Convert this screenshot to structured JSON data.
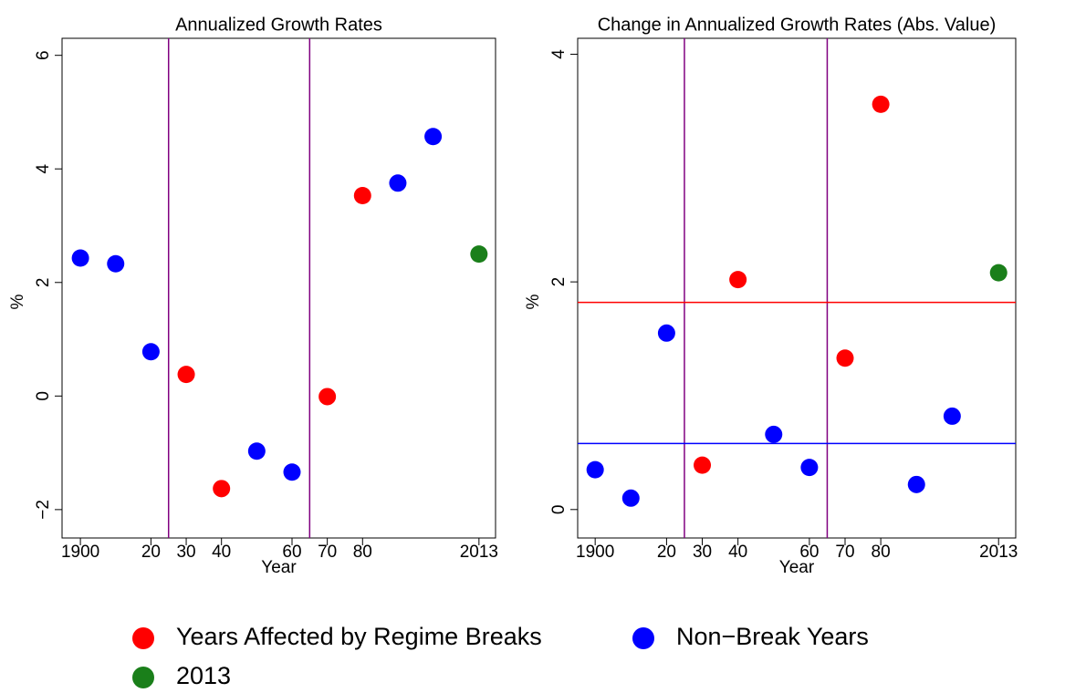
{
  "chart_data": [
    {
      "type": "scatter",
      "title": "Annualized Growth Rates",
      "xlabel": "Year",
      "ylabel": "%",
      "xlim": [
        1894.8,
        2017.7
      ],
      "ylim": [
        -2.5,
        6.3
      ],
      "xticks": [
        {
          "value": 1900,
          "label": "1900"
        },
        {
          "value": 1920,
          "label": "20"
        },
        {
          "value": 1930,
          "label": "30"
        },
        {
          "value": 1940,
          "label": "40"
        },
        {
          "value": 1960,
          "label": "60"
        },
        {
          "value": 1970,
          "label": "70"
        },
        {
          "value": 1980,
          "label": "80"
        },
        2013
      ],
      "yticks": [
        {
          "value": -2,
          "label": "−2"
        },
        0,
        2,
        4,
        6
      ],
      "vlines": [
        1925,
        1965
      ],
      "vline_color": "#800080",
      "series": [
        {
          "name": "Years Affected by Regime Breaks",
          "color": "#ff0000",
          "x": [
            1930,
            1940,
            1970,
            1980
          ],
          "values": [
            0.38,
            -1.63,
            -0.01,
            3.53
          ]
        },
        {
          "name": "Non−Break Years",
          "color": "#0000ff",
          "x": [
            1900,
            1910,
            1920,
            1950,
            1960,
            1990,
            2000
          ],
          "values": [
            2.43,
            2.33,
            0.78,
            -0.97,
            -1.34,
            3.75,
            4.57
          ]
        },
        {
          "name": "2013",
          "color": "#1a7f1a",
          "x": [
            2013
          ],
          "values": [
            2.5
          ]
        }
      ]
    },
    {
      "type": "scatter",
      "title": "Change in Annualized Growth Rates (Abs. Value)",
      "xlabel": "Year",
      "ylabel": "%",
      "xlim": [
        1895.1,
        2017.8
      ],
      "ylim": [
        -0.25,
        4.14
      ],
      "xticks": [
        {
          "value": 1900,
          "label": "1900"
        },
        {
          "value": 1920,
          "label": "20"
        },
        {
          "value": 1930,
          "label": "30"
        },
        {
          "value": 1940,
          "label": "40"
        },
        {
          "value": 1960,
          "label": "60"
        },
        {
          "value": 1970,
          "label": "70"
        },
        {
          "value": 1980,
          "label": "80"
        },
        2013
      ],
      "yticks": [
        0,
        2,
        4
      ],
      "vlines": [
        1925,
        1965
      ],
      "vline_color": "#800080",
      "hlines": [
        {
          "value": 1.82,
          "color": "#ff0000"
        },
        {
          "value": 0.58,
          "color": "#0000ff"
        }
      ],
      "series": [
        {
          "color": "#ff0000",
          "x": [
            1930,
            1940,
            1970,
            1980
          ],
          "values": [
            0.39,
            2.02,
            1.33,
            3.56
          ]
        },
        {
          "color": "#0000ff",
          "x": [
            1900,
            1910,
            1920,
            1950,
            1960,
            1990,
            2000
          ],
          "values": [
            0.35,
            0.1,
            1.55,
            0.66,
            0.37,
            0.22,
            0.82
          ]
        },
        {
          "color": "#1a7f1a",
          "x": [
            2013
          ],
          "values": [
            2.08
          ]
        }
      ]
    }
  ]
}
